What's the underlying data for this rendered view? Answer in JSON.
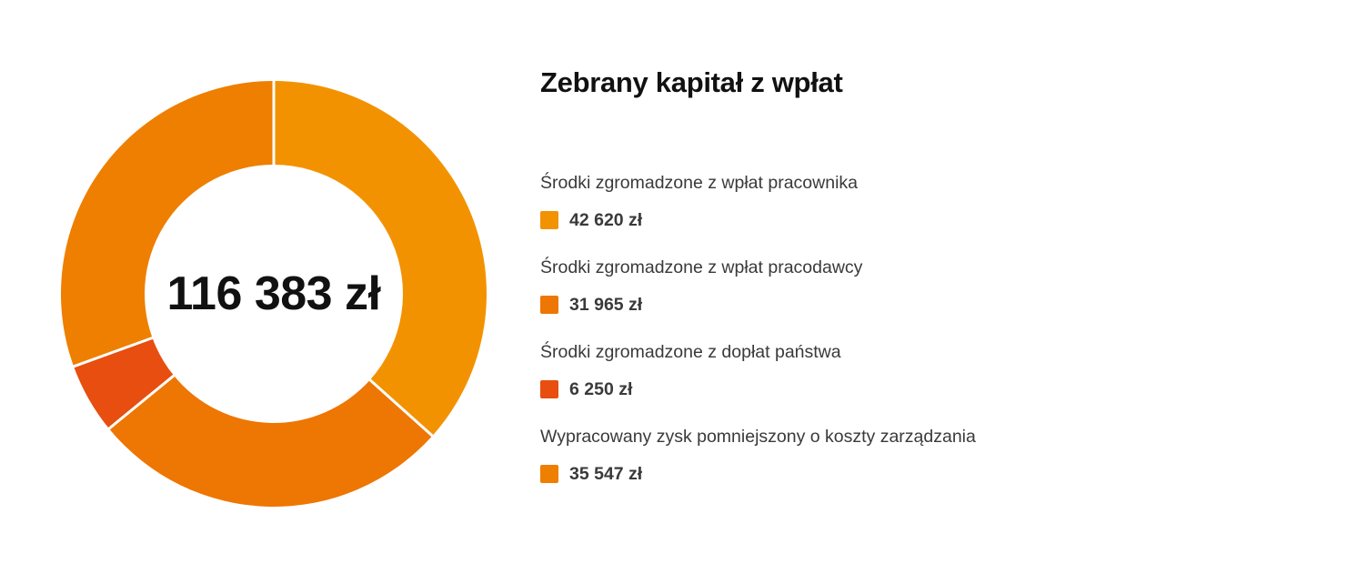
{
  "colors": {
    "segment_1": "#F39200",
    "segment_2": "#EE7603",
    "segment_3": "#E74E0F",
    "segment_4": "#EE7F00",
    "separator": "#ffffff"
  },
  "total": "116 383 zł",
  "title": "Zebrany kapitał z wpłat",
  "legend": [
    {
      "label": "Środki zgromadzone z wpłat pracownika",
      "value_text": "42 620 zł",
      "icon": "orange-square-icon"
    },
    {
      "label": "Środki zgromadzone z wpłat pracodawcy",
      "value_text": "31 965 zł",
      "icon": "dark-orange-square-icon"
    },
    {
      "label": "Środki zgromadzone z dopłat państwa",
      "value_text": "6 250 zł",
      "icon": "red-orange-square-icon"
    },
    {
      "label": "Wypracowany zysk pomniejszony o koszty zarządzania",
      "value_text": "35 547 zł",
      "icon": "orange-square-icon"
    }
  ],
  "chart_data": {
    "type": "pie",
    "title": "Zebrany kapitał z wpłat",
    "center_label": "116 383 zł",
    "unit": "zł",
    "categories": [
      "Środki zgromadzone z wpłat pracownika",
      "Środki zgromadzone z wpłat pracodawcy",
      "Środki zgromadzone z dopłat państwa",
      "Wypracowany zysk pomniejszony o koszty zarządzania"
    ],
    "values": [
      42620,
      31965,
      6250,
      35547
    ],
    "total": 116383,
    "legend_position": "right"
  }
}
